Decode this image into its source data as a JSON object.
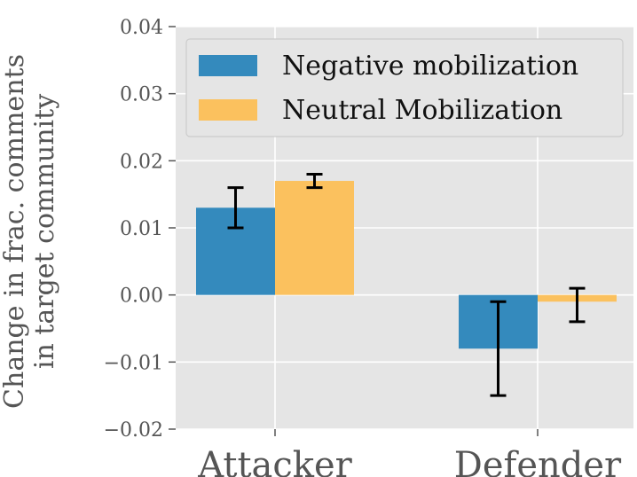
{
  "chart_data": {
    "type": "bar",
    "ylabel_lines": [
      "Change in frac. comments",
      "in target community"
    ],
    "xlabel": "",
    "categories": [
      "Attacker",
      "Defender"
    ],
    "ylim": [
      -0.02,
      0.04
    ],
    "yticks": [
      -0.02,
      -0.01,
      0.0,
      0.01,
      0.02,
      0.03,
      0.04
    ],
    "ytick_labels": [
      "−0.02",
      "−0.01",
      "0.00",
      "0.01",
      "0.02",
      "0.03",
      "0.04"
    ],
    "grid": true,
    "legend_position": "top-right",
    "series": [
      {
        "name": "Negative mobilization",
        "color": "#348ABD",
        "values": [
          0.013,
          -0.008
        ],
        "error_low": [
          0.01,
          -0.015
        ],
        "error_high": [
          0.016,
          -0.001
        ]
      },
      {
        "name": "Neutral Mobilization",
        "color": "#FBC15E",
        "values": [
          0.017,
          -0.001
        ],
        "error_low": [
          0.016,
          -0.004
        ],
        "error_high": [
          0.018,
          0.001
        ]
      }
    ],
    "style": {
      "background": "#E5E5E5",
      "grid_color": "#FFFFFF",
      "error_color": "#000000"
    }
  }
}
